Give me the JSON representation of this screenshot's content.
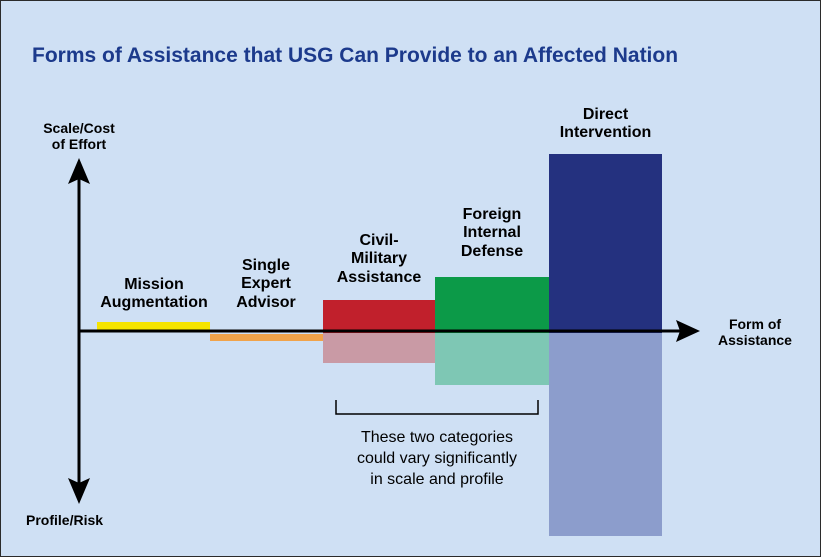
{
  "title": "Forms of Assistance that USG Can Provide to an Affected Nation",
  "axes": {
    "vertical_top": "Scale/Cost\nof Effort",
    "vertical_bottom": "Profile/Risk",
    "horizontal": "Form of\nAssistance"
  },
  "categories": [
    {
      "label": "Mission\nAugmentation",
      "scale_color": "#f5e400",
      "profile_color": "#f5e400"
    },
    {
      "label": "Single\nExpert\nAdvisor",
      "scale_color": "#f0a34a",
      "profile_color": "#f0a34a"
    },
    {
      "label": "Civil-\nMilitary\nAssistance",
      "scale_color": "#c1202c",
      "profile_color": "#c99aa5"
    },
    {
      "label": "Foreign\nInternal\nDefense",
      "scale_color": "#0c9a48",
      "profile_color": "#7ec7b4"
    },
    {
      "label": "Direct\nIntervention",
      "scale_color": "#24317f",
      "profile_color": "#8c9dcc"
    }
  ],
  "bracket_note": "These two categories\ncould vary significantly\nin scale and profile"
}
